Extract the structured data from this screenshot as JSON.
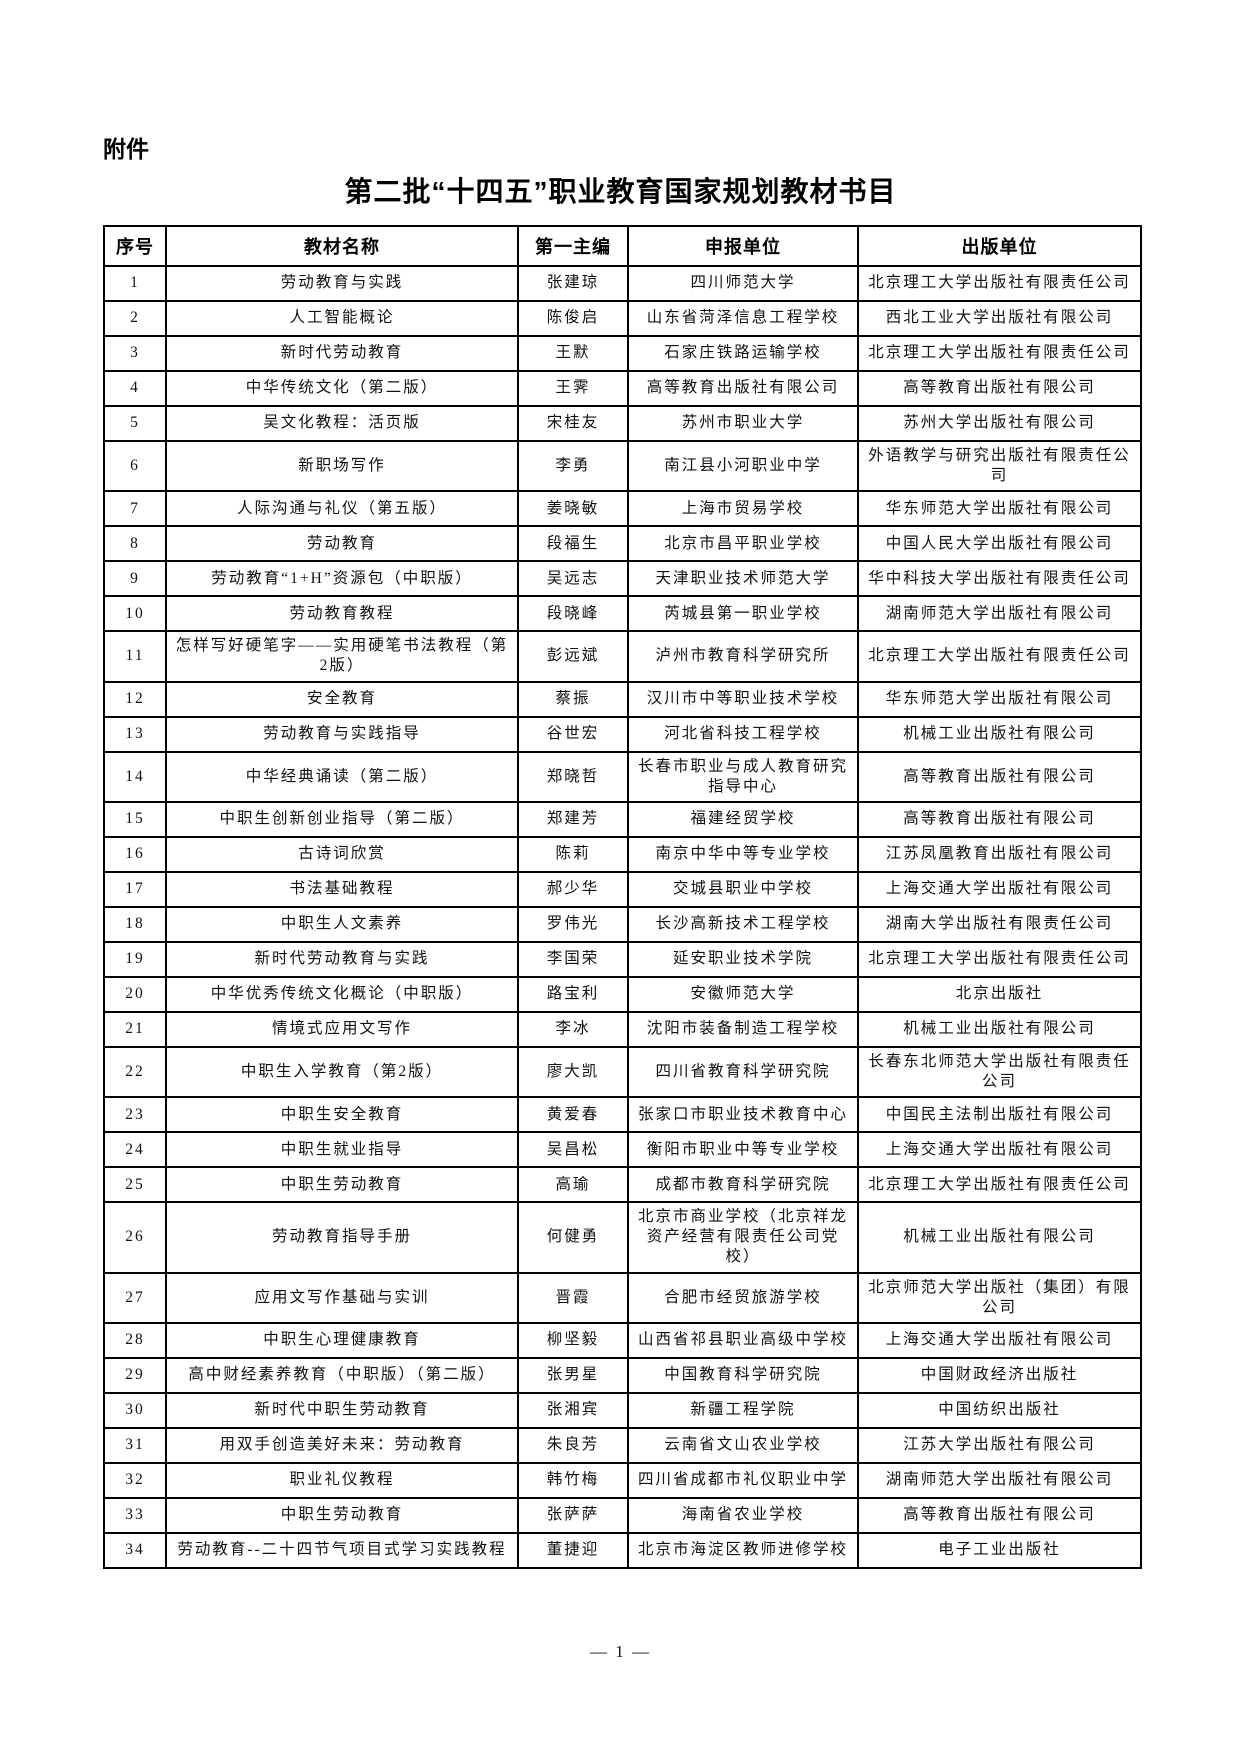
{
  "page": {
    "attachment_label": "附件",
    "title": "第二批“十四五”职业教育国家规划教材书目",
    "page_number": "— 1 —"
  },
  "table": {
    "columns": [
      "序号",
      "教材名称",
      "第一主编",
      "申报单位",
      "出版单位"
    ],
    "rows": [
      {
        "no": "1",
        "name": "劳动教育与实践",
        "editor": "张建琼",
        "applicant": "四川师范大学",
        "publisher": "北京理工大学出版社有限责任公司"
      },
      {
        "no": "2",
        "name": "人工智能概论",
        "editor": "陈俊启",
        "applicant": "山东省菏泽信息工程学校",
        "publisher": "西北工业大学出版社有限公司"
      },
      {
        "no": "3",
        "name": "新时代劳动教育",
        "editor": "王默",
        "applicant": "石家庄铁路运输学校",
        "publisher": "北京理工大学出版社有限责任公司"
      },
      {
        "no": "4",
        "name": "中华传统文化（第二版）",
        "editor": "王霁",
        "applicant": "高等教育出版社有限公司",
        "publisher": "高等教育出版社有限公司"
      },
      {
        "no": "5",
        "name": "吴文化教程：活页版",
        "editor": "宋桂友",
        "applicant": "苏州市职业大学",
        "publisher": "苏州大学出版社有限公司"
      },
      {
        "no": "6",
        "name": "新职场写作",
        "editor": "李勇",
        "applicant": "南江县小河职业中学",
        "publisher": "外语教学与研究出版社有限责任公司"
      },
      {
        "no": "7",
        "name": "人际沟通与礼仪（第五版）",
        "editor": "姜晓敏",
        "applicant": "上海市贸易学校",
        "publisher": "华东师范大学出版社有限公司"
      },
      {
        "no": "8",
        "name": "劳动教育",
        "editor": "段福生",
        "applicant": "北京市昌平职业学校",
        "publisher": "中国人民大学出版社有限公司"
      },
      {
        "no": "9",
        "name": "劳动教育“1+H”资源包（中职版）",
        "editor": "吴远志",
        "applicant": "天津职业技术师范大学",
        "publisher": "华中科技大学出版社有限责任公司"
      },
      {
        "no": "10",
        "name": "劳动教育教程",
        "editor": "段晓峰",
        "applicant": "芮城县第一职业学校",
        "publisher": "湖南师范大学出版社有限公司"
      },
      {
        "no": "11",
        "name": "怎样写好硬笔字——实用硬笔书法教程（第2版）",
        "editor": "彭远斌",
        "applicant": "泸州市教育科学研究所",
        "publisher": "北京理工大学出版社有限责任公司"
      },
      {
        "no": "12",
        "name": "安全教育",
        "editor": "蔡振",
        "applicant": "汉川市中等职业技术学校",
        "publisher": "华东师范大学出版社有限公司"
      },
      {
        "no": "13",
        "name": "劳动教育与实践指导",
        "editor": "谷世宏",
        "applicant": "河北省科技工程学校",
        "publisher": "机械工业出版社有限公司"
      },
      {
        "no": "14",
        "name": "中华经典诵读（第二版）",
        "editor": "郑晓哲",
        "applicant": "长春市职业与成人教育研究指导中心",
        "publisher": "高等教育出版社有限公司"
      },
      {
        "no": "15",
        "name": "中职生创新创业指导（第二版）",
        "editor": "郑建芳",
        "applicant": "福建经贸学校",
        "publisher": "高等教育出版社有限公司"
      },
      {
        "no": "16",
        "name": "古诗词欣赏",
        "editor": "陈莉",
        "applicant": "南京中华中等专业学校",
        "publisher": "江苏凤凰教育出版社有限公司"
      },
      {
        "no": "17",
        "name": "书法基础教程",
        "editor": "郝少华",
        "applicant": "交城县职业中学校",
        "publisher": "上海交通大学出版社有限公司"
      },
      {
        "no": "18",
        "name": "中职生人文素养",
        "editor": "罗伟光",
        "applicant": "长沙高新技术工程学校",
        "publisher": "湖南大学出版社有限责任公司"
      },
      {
        "no": "19",
        "name": "新时代劳动教育与实践",
        "editor": "李国荣",
        "applicant": "延安职业技术学院",
        "publisher": "北京理工大学出版社有限责任公司"
      },
      {
        "no": "20",
        "name": "中华优秀传统文化概论（中职版）",
        "editor": "路宝利",
        "applicant": "安徽师范大学",
        "publisher": "北京出版社"
      },
      {
        "no": "21",
        "name": "情境式应用文写作",
        "editor": "李冰",
        "applicant": "沈阳市装备制造工程学校",
        "publisher": "机械工业出版社有限公司"
      },
      {
        "no": "22",
        "name": "中职生入学教育（第2版）",
        "editor": "廖大凯",
        "applicant": "四川省教育科学研究院",
        "publisher": "长春东北师范大学出版社有限责任公司"
      },
      {
        "no": "23",
        "name": "中职生安全教育",
        "editor": "黄爱春",
        "applicant": "张家口市职业技术教育中心",
        "publisher": "中国民主法制出版社有限公司"
      },
      {
        "no": "24",
        "name": "中职生就业指导",
        "editor": "吴昌松",
        "applicant": "衡阳市职业中等专业学校",
        "publisher": "上海交通大学出版社有限公司"
      },
      {
        "no": "25",
        "name": "中职生劳动教育",
        "editor": "高瑜",
        "applicant": "成都市教育科学研究院",
        "publisher": "北京理工大学出版社有限责任公司"
      },
      {
        "no": "26",
        "name": "劳动教育指导手册",
        "editor": "何健勇",
        "applicant": "北京市商业学校（北京祥龙资产经营有限责任公司党校）",
        "publisher": "机械工业出版社有限公司"
      },
      {
        "no": "27",
        "name": "应用文写作基础与实训",
        "editor": "晋霞",
        "applicant": "合肥市经贸旅游学校",
        "publisher": "北京师范大学出版社（集团）有限公司"
      },
      {
        "no": "28",
        "name": "中职生心理健康教育",
        "editor": "柳坚毅",
        "applicant": "山西省祁县职业高级中学校",
        "publisher": "上海交通大学出版社有限公司"
      },
      {
        "no": "29",
        "name": "高中财经素养教育（中职版）（第二版）",
        "editor": "张男星",
        "applicant": "中国教育科学研究院",
        "publisher": "中国财政经济出版社"
      },
      {
        "no": "30",
        "name": "新时代中职生劳动教育",
        "editor": "张湘宾",
        "applicant": "新疆工程学院",
        "publisher": "中国纺织出版社"
      },
      {
        "no": "31",
        "name": "用双手创造美好未来：劳动教育",
        "editor": "朱良芳",
        "applicant": "云南省文山农业学校",
        "publisher": "江苏大学出版社有限公司"
      },
      {
        "no": "32",
        "name": "职业礼仪教程",
        "editor": "韩竹梅",
        "applicant": "四川省成都市礼仪职业中学",
        "publisher": "湖南师范大学出版社有限公司"
      },
      {
        "no": "33",
        "name": "中职生劳动教育",
        "editor": "张萨萨",
        "applicant": "海南省农业学校",
        "publisher": "高等教育出版社有限公司"
      },
      {
        "no": "34",
        "name": "劳动教育--二十四节气项目式学习实践教程",
        "editor": "董捷迎",
        "applicant": "北京市海淀区教师进修学校",
        "publisher": "电子工业出版社"
      }
    ]
  }
}
